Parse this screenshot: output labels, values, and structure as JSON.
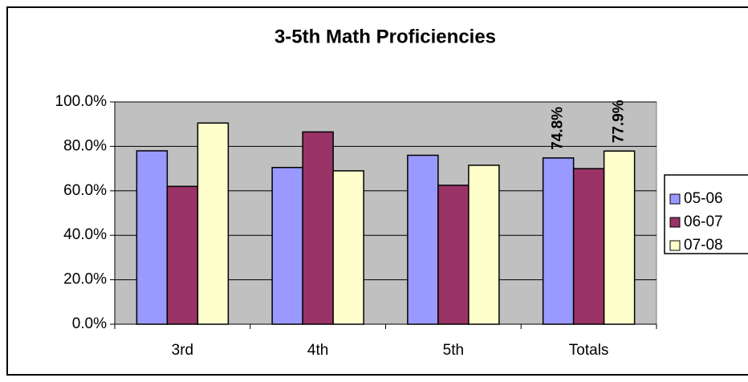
{
  "chart_data": {
    "type": "bar",
    "title": "3-5th Math Proficiencies",
    "categories": [
      "3rd",
      "4th",
      "5th",
      "Totals"
    ],
    "series": [
      {
        "name": "05-06",
        "color": "#9999ff",
        "values": [
          78,
          70.5,
          76,
          74.8
        ],
        "value_labels": [
          null,
          null,
          null,
          "74.8%"
        ]
      },
      {
        "name": "06-07",
        "color": "#993366",
        "values": [
          62,
          86.5,
          62.5,
          70
        ]
      },
      {
        "name": "07-08",
        "color": "#ffffcc",
        "values": [
          90.5,
          69,
          71.5,
          77.9
        ],
        "value_labels": [
          null,
          null,
          null,
          "77.9%"
        ]
      }
    ],
    "ylim": [
      0,
      100
    ],
    "yticks": [
      {
        "value": 0,
        "label": "0.0%"
      },
      {
        "value": 20,
        "label": "20.0%"
      },
      {
        "value": 40,
        "label": "40.0%"
      },
      {
        "value": 60,
        "label": "60.0%"
      },
      {
        "value": 80,
        "label": "80.0%"
      },
      {
        "value": 100,
        "label": "100.0%"
      }
    ],
    "grid": true,
    "legend": "right",
    "plot_background": "#c0c0c0"
  }
}
